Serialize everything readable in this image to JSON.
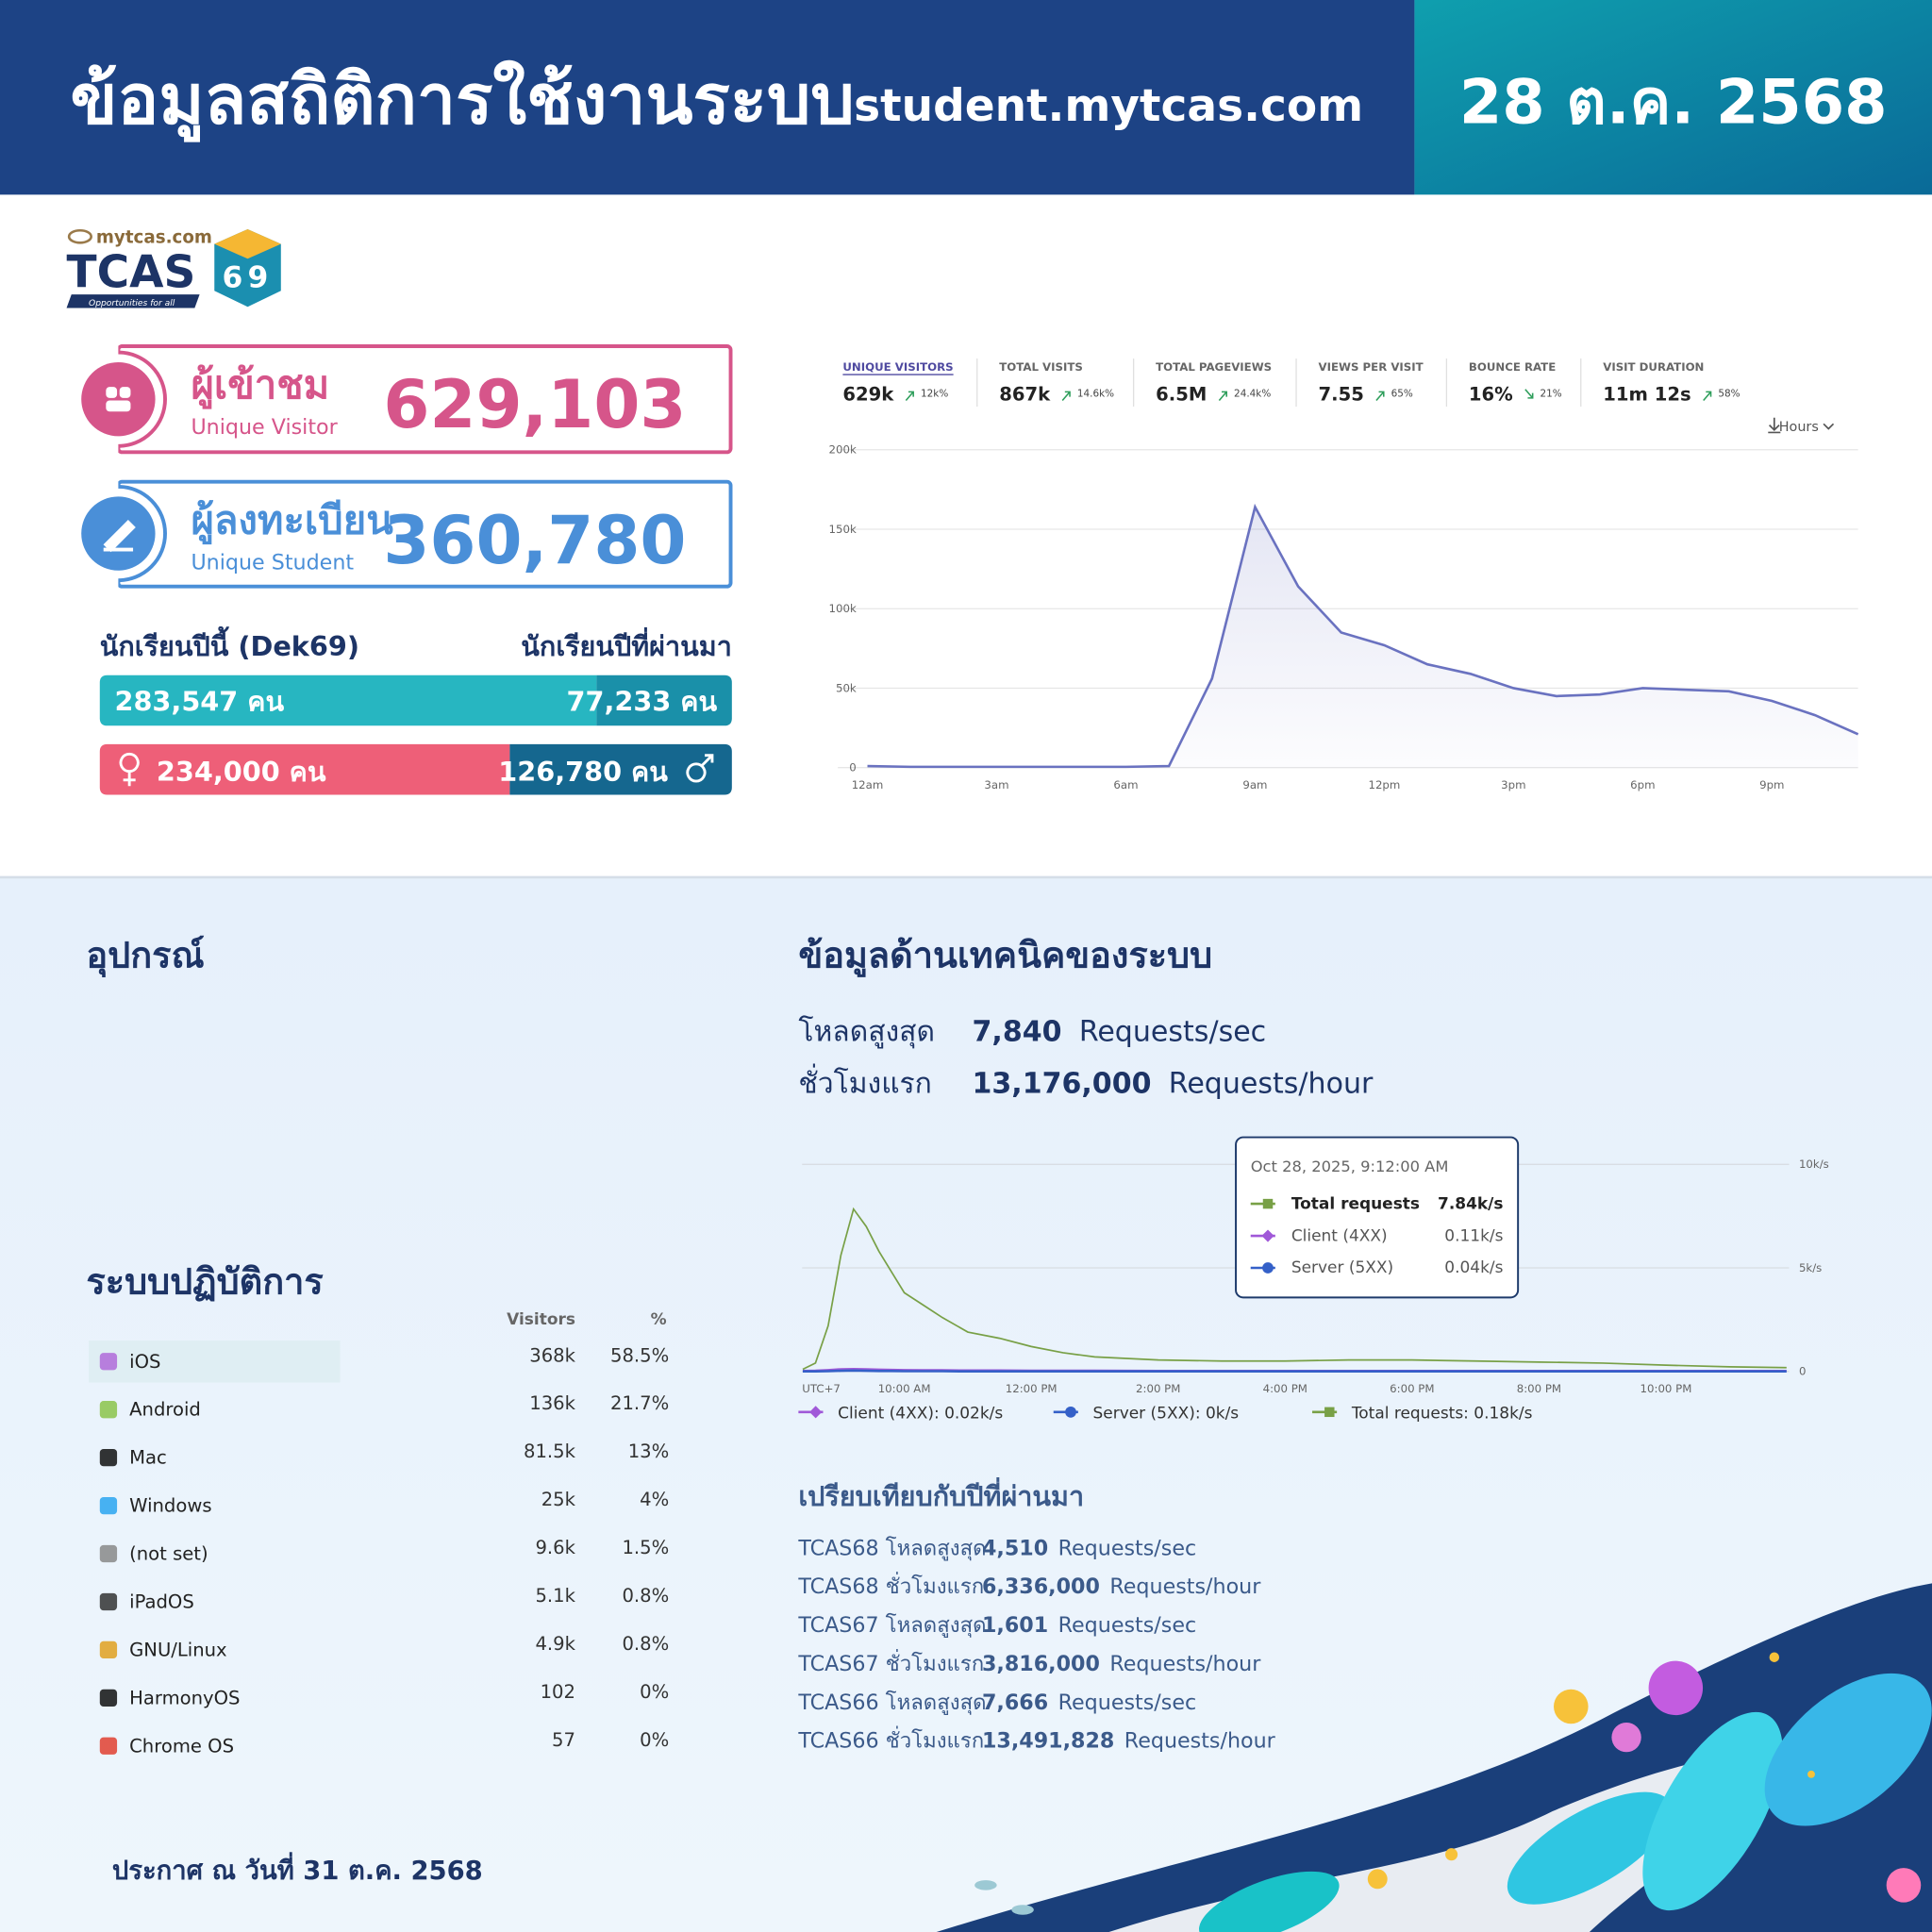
{
  "header": {
    "title": "ข้อมูลสถิติการใช้งานระบบ",
    "site": "student.mytcas.com",
    "date": "28 ต.ค. 2568"
  },
  "logo": {
    "domain": "mytcas.com",
    "brand": "TCAS",
    "number": "69",
    "tagline": "Opportunities for all"
  },
  "visitor_card": {
    "label": "ผู้เข้าชม",
    "sublabel": "Unique Visitor",
    "value": "629,103"
  },
  "student_card": {
    "label": "ผู้ลงทะเบียน",
    "sublabel": "Unique Student",
    "value": "360,780"
  },
  "students": {
    "current_label": "นักเรียนปีนี้ (Dek69)",
    "past_label": "นักเรียนปีที่ผ่านมา",
    "values": [
      283547,
      77233
    ],
    "value_labels": [
      "283,547 คน",
      "77,233 คน"
    ],
    "colors": [
      "#27b6c1",
      "#1a90a9"
    ]
  },
  "gender": {
    "values": [
      234000,
      126780
    ],
    "value_labels": [
      "234,000 คน",
      "126,780 คน"
    ],
    "colors": [
      "#ee5f78",
      "#15678f"
    ]
  },
  "metrics": [
    {
      "label": "UNIQUE VISITORS",
      "value": "629k",
      "change": "12k%",
      "trend": "up"
    },
    {
      "label": "TOTAL VISITS",
      "value": "867k",
      "change": "14.6k%",
      "trend": "up"
    },
    {
      "label": "TOTAL PAGEVIEWS",
      "value": "6.5M",
      "change": "24.4k%",
      "trend": "up"
    },
    {
      "label": "VIEWS PER VISIT",
      "value": "7.55",
      "change": "65%",
      "trend": "up"
    },
    {
      "label": "BOUNCE RATE",
      "value": "16%",
      "change": "21%",
      "trend": "down"
    },
    {
      "label": "VISIT DURATION",
      "value": "11m 12s",
      "change": "58%",
      "trend": "up"
    }
  ],
  "interval": "Hours",
  "chart_data": [
    {
      "type": "line",
      "fill": true,
      "color": "#6a72c0",
      "categories": [
        "12am",
        null,
        null,
        "3am",
        null,
        null,
        "6am",
        null,
        null,
        "9am",
        null,
        null,
        "12pm",
        null,
        null,
        "3pm",
        null,
        null,
        "6pm",
        null,
        null,
        "9pm",
        null,
        null
      ],
      "values": [
        1000,
        500,
        500,
        500,
        500,
        500,
        500,
        1000,
        56000,
        164000,
        114000,
        85000,
        77000,
        65000,
        59000,
        50000,
        45000,
        46000,
        50000,
        49000,
        48000,
        42000,
        33000,
        21000
      ],
      "ylim": [
        0,
        200000
      ],
      "yticks": [
        0,
        {
          "value": 50000,
          "label": "50k"
        },
        {
          "value": 100000,
          "label": "100k"
        },
        {
          "value": 150000,
          "label": "150k"
        },
        {
          "value": 200000,
          "label": "200k"
        }
      ],
      "grid": true
    },
    {
      "type": "line",
      "x_label": "UTC+7",
      "x": [
        8.4,
        8.6,
        8.8,
        9.0,
        9.2,
        9.4,
        9.6,
        9.8,
        10.0,
        10.3,
        10.6,
        11.0,
        11.5,
        12.0,
        12.5,
        13.0,
        14.0,
        15.0,
        16.0,
        17.0,
        18.0,
        19.0,
        20.0,
        21.0,
        22.0,
        23.0,
        23.9
      ],
      "xlim": [
        8.39,
        23.94
      ],
      "xticks": [
        {
          "value": 10,
          "label": "10:00 AM"
        },
        {
          "value": 12,
          "label": "12:00 PM"
        },
        {
          "value": 14,
          "label": "2:00 PM"
        },
        {
          "value": 16,
          "label": "4:00 PM"
        },
        {
          "value": 18,
          "label": "6:00 PM"
        },
        {
          "value": 20,
          "label": "8:00 PM"
        },
        {
          "value": 22,
          "label": "10:00 PM"
        }
      ],
      "ylim": [
        0,
        10
      ],
      "yticks": [
        0,
        {
          "value": 5,
          "label": "5k/s"
        },
        {
          "value": 10,
          "label": "10k/s"
        }
      ],
      "grid": true,
      "series": [
        {
          "name": "Client (4XX)",
          "color": "#a058d8",
          "marker": "diamond",
          "legend": "Client (4XX): 0.02k/s",
          "tooltip_value": "0.11k/s",
          "values": [
            0.02,
            0.03,
            0.06,
            0.1,
            0.11,
            0.1,
            0.08,
            0.07,
            0.06,
            0.05,
            0.05,
            0.04,
            0.04,
            0.03,
            0.03,
            0.03,
            0.02,
            0.02,
            0.02,
            0.02,
            0.02,
            0.02,
            0.02,
            0.02,
            0.02,
            0.02,
            0.02
          ]
        },
        {
          "name": "Server (5XX)",
          "color": "#3460c8",
          "marker": "circle",
          "legend": "Server (5XX): 0k/s",
          "tooltip_value": "0.04k/s",
          "values": [
            0,
            0,
            0.01,
            0.03,
            0.04,
            0.03,
            0.02,
            0.02,
            0.01,
            0.01,
            0.01,
            0,
            0,
            0,
            0,
            0,
            0,
            0,
            0,
            0,
            0,
            0,
            0,
            0,
            0,
            0,
            0
          ]
        },
        {
          "name": "Total requests",
          "color": "#78a046",
          "marker": "square",
          "legend": "Total requests: 0.18k/s",
          "tooltip_value": "7.84k/s",
          "values": [
            0.1,
            0.4,
            2.2,
            5.6,
            7.84,
            7.0,
            5.8,
            4.8,
            3.8,
            3.2,
            2.6,
            1.9,
            1.6,
            1.2,
            0.9,
            0.7,
            0.55,
            0.5,
            0.5,
            0.55,
            0.55,
            0.5,
            0.45,
            0.4,
            0.3,
            0.22,
            0.18
          ]
        }
      ],
      "tooltip": {
        "title": "Oct 28, 2025, 9:12:00 AM"
      }
    }
  ],
  "devices": {
    "title": "อุปกรณ์"
  },
  "os": {
    "title": "ระบบปฏิบัติการ",
    "columns": [
      "Visitors",
      "%"
    ],
    "rows": [
      {
        "name": "iOS",
        "visitors": "368k",
        "percent": "58.5%"
      },
      {
        "name": "Android",
        "visitors": "136k",
        "percent": "21.7%"
      },
      {
        "name": "Mac",
        "visitors": "81.5k",
        "percent": "13%"
      },
      {
        "name": "Windows",
        "visitors": "25k",
        "percent": "4%"
      },
      {
        "name": "(not set)",
        "visitors": "9.6k",
        "percent": "1.5%"
      },
      {
        "name": "iPadOS",
        "visitors": "5.1k",
        "percent": "0.8%"
      },
      {
        "name": "GNU/Linux",
        "visitors": "4.9k",
        "percent": "0.8%"
      },
      {
        "name": "HarmonyOS",
        "visitors": "102",
        "percent": "0%"
      },
      {
        "name": "Chrome OS",
        "visitors": "57",
        "percent": "0%"
      }
    ]
  },
  "tech": {
    "title": "ข้อมูลด้านเทคนิคของระบบ",
    "rows": [
      {
        "label": "โหลดสูงสุด",
        "value": "7,840",
        "unit": "Requests/sec"
      },
      {
        "label": "ชั่วโมงแรก",
        "value": "13,176,000",
        "unit": "Requests/hour"
      }
    ]
  },
  "compare": {
    "title": "เปรียบเทียบกับปีที่ผ่านมา",
    "rows": [
      {
        "label": "TCAS68 โหลดสูงสุด",
        "value": "4,510",
        "unit": "Requests/sec"
      },
      {
        "label": "TCAS68 ชั่วโมงแรก",
        "value": "6,336,000",
        "unit": "Requests/hour"
      },
      {
        "label": "TCAS67 โหลดสูงสุด",
        "value": "1,601",
        "unit": "Requests/sec"
      },
      {
        "label": "TCAS67 ชั่วโมงแรก",
        "value": "3,816,000",
        "unit": "Requests/hour"
      },
      {
        "label": "TCAS66 โหลดสูงสุด",
        "value": "7,666",
        "unit": "Requests/sec"
      },
      {
        "label": "TCAS66 ชั่วโมงแรก",
        "value": "13,491,828",
        "unit": "Requests/hour"
      }
    ]
  },
  "footer": {
    "note": "ประกาศ ณ วันที่ 31 ต.ค. 2568"
  }
}
